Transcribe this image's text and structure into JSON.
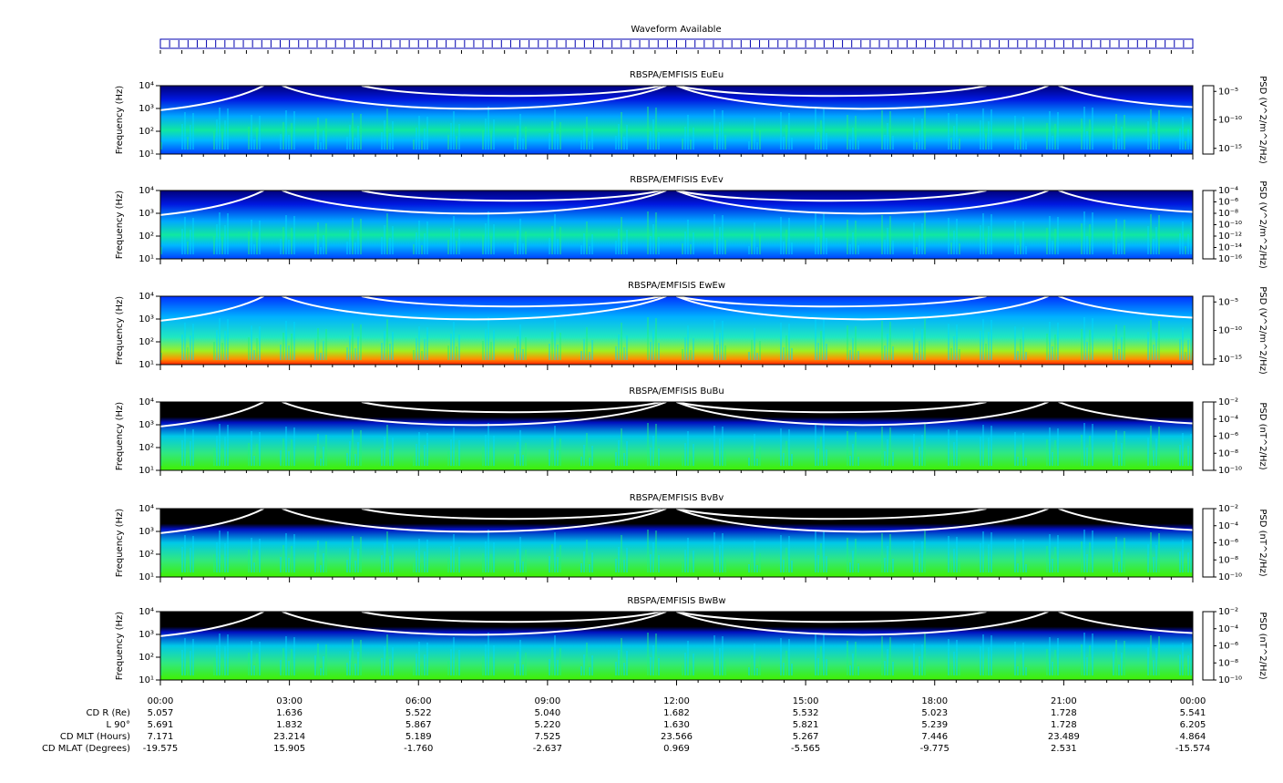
{
  "header": {
    "title": "Waveform Available"
  },
  "chart_data": [
    {
      "type": "spectrogram",
      "title": "RBSPA/EMFISIS  EuEu",
      "ylabel": "Frequency (Hz)",
      "ylim": [
        10,
        10000
      ],
      "log_y": true,
      "yticks": [
        {
          "value": 10,
          "label": "10¹"
        },
        {
          "value": 100,
          "label": "10²"
        },
        {
          "value": 1000,
          "label": "10³"
        },
        {
          "value": 10000,
          "label": "10⁴"
        }
      ],
      "zlabel": "PSD (V^2/m^2/Hz)",
      "zlim": [
        1e-16,
        0.0001
      ],
      "zticks": [
        {
          "value": 1e-05,
          "label": "10⁻⁵"
        },
        {
          "value": 1e-10,
          "label": "10⁻¹⁰"
        },
        {
          "value": 1e-15,
          "label": "10⁻¹⁵"
        }
      ]
    },
    {
      "type": "spectrogram",
      "title": "RBSPA/EMFISIS  EvEv",
      "ylabel": "Frequency (Hz)",
      "ylim": [
        10,
        10000
      ],
      "log_y": true,
      "yticks": [
        {
          "value": 10,
          "label": "10¹"
        },
        {
          "value": 100,
          "label": "10²"
        },
        {
          "value": 1000,
          "label": "10³"
        },
        {
          "value": 10000,
          "label": "10⁴"
        }
      ],
      "zlabel": "PSD (V^2/m^2/Hz)",
      "zlim": [
        1e-16,
        0.0001
      ],
      "zticks": [
        {
          "value": 0.0001,
          "label": "10⁻⁴"
        },
        {
          "value": 1e-06,
          "label": "10⁻⁶"
        },
        {
          "value": 1e-08,
          "label": "10⁻⁸"
        },
        {
          "value": 1e-10,
          "label": "10⁻¹⁰"
        },
        {
          "value": 1e-12,
          "label": "10⁻¹²"
        },
        {
          "value": 1e-14,
          "label": "10⁻¹⁴"
        },
        {
          "value": 1e-16,
          "label": "10⁻¹⁶"
        }
      ]
    },
    {
      "type": "spectrogram",
      "title": "RBSPA/EMFISIS  EwEw",
      "ylabel": "Frequency (Hz)",
      "ylim": [
        10,
        10000
      ],
      "log_y": true,
      "yticks": [
        {
          "value": 10,
          "label": "10¹"
        },
        {
          "value": 100,
          "label": "10²"
        },
        {
          "value": 1000,
          "label": "10³"
        },
        {
          "value": 10000,
          "label": "10⁴"
        }
      ],
      "zlabel": "PSD (V^2/m^2/Hz)",
      "zlim": [
        1e-16,
        0.0001
      ],
      "zticks": [
        {
          "value": 1e-05,
          "label": "10⁻⁵"
        },
        {
          "value": 1e-10,
          "label": "10⁻¹⁰"
        },
        {
          "value": 1e-15,
          "label": "10⁻¹⁵"
        }
      ]
    },
    {
      "type": "spectrogram",
      "title": "RBSPA/EMFISIS  BuBu",
      "ylabel": "Frequency (Hz)",
      "ylim": [
        10,
        10000
      ],
      "log_y": true,
      "yticks": [
        {
          "value": 10,
          "label": "10¹"
        },
        {
          "value": 100,
          "label": "10²"
        },
        {
          "value": 1000,
          "label": "10³"
        },
        {
          "value": 10000,
          "label": "10⁴"
        }
      ],
      "zlabel": "PSD (nT^2/Hz)",
      "zlim": [
        1e-10,
        0.01
      ],
      "zticks": [
        {
          "value": 0.01,
          "label": "10⁻²"
        },
        {
          "value": 0.0001,
          "label": "10⁻⁴"
        },
        {
          "value": 1e-06,
          "label": "10⁻⁶"
        },
        {
          "value": 1e-08,
          "label": "10⁻⁸"
        },
        {
          "value": 1e-10,
          "label": "10⁻¹⁰"
        }
      ]
    },
    {
      "type": "spectrogram",
      "title": "RBSPA/EMFISIS  BvBv",
      "ylabel": "Frequency (Hz)",
      "ylim": [
        10,
        10000
      ],
      "log_y": true,
      "yticks": [
        {
          "value": 10,
          "label": "10¹"
        },
        {
          "value": 100,
          "label": "10²"
        },
        {
          "value": 1000,
          "label": "10³"
        },
        {
          "value": 10000,
          "label": "10⁴"
        }
      ],
      "zlabel": "PSD (nT^2/Hz)",
      "zlim": [
        1e-10,
        0.01
      ],
      "zticks": [
        {
          "value": 0.01,
          "label": "10⁻²"
        },
        {
          "value": 0.0001,
          "label": "10⁻⁴"
        },
        {
          "value": 1e-06,
          "label": "10⁻⁶"
        },
        {
          "value": 1e-08,
          "label": "10⁻⁸"
        },
        {
          "value": 1e-10,
          "label": "10⁻¹⁰"
        }
      ]
    },
    {
      "type": "spectrogram",
      "title": "RBSPA/EMFISIS  BwBw",
      "ylabel": "Frequency (Hz)",
      "ylim": [
        10,
        10000
      ],
      "log_y": true,
      "yticks": [
        {
          "value": 10,
          "label": "10¹"
        },
        {
          "value": 100,
          "label": "10²"
        },
        {
          "value": 1000,
          "label": "10³"
        },
        {
          "value": 10000,
          "label": "10⁴"
        }
      ],
      "zlabel": "PSD (nT^2/Hz)",
      "zlim": [
        1e-10,
        0.01
      ],
      "zticks": [
        {
          "value": 0.01,
          "label": "10⁻²"
        },
        {
          "value": 0.0001,
          "label": "10⁻⁴"
        },
        {
          "value": 1e-06,
          "label": "10⁻⁶"
        },
        {
          "value": 1e-08,
          "label": "10⁻⁸"
        },
        {
          "value": 1e-10,
          "label": "10⁻¹⁰"
        }
      ]
    }
  ],
  "time_axis": {
    "labels": [
      "00:00",
      "03:00",
      "06:00",
      "09:00",
      "12:00",
      "15:00",
      "18:00",
      "21:00",
      "00:00"
    ]
  },
  "ephemeris": [
    {
      "label": "CD R (Re)",
      "values": [
        "5.057",
        "1.636",
        "5.522",
        "5.040",
        "1.682",
        "5.532",
        "5.023",
        "1.728",
        "5.541"
      ]
    },
    {
      "label": "L 90°",
      "values": [
        "5.691",
        "1.832",
        "5.867",
        "5.220",
        "1.630",
        "5.821",
        "5.239",
        "1.728",
        "6.205"
      ]
    },
    {
      "label": "CD MLT (Hours)",
      "values": [
        "7.171",
        "23.214",
        "5.189",
        "7.525",
        "23.566",
        "5.267",
        "7.446",
        "23.489",
        "4.864"
      ]
    },
    {
      "label": "CD MLAT (Degrees)",
      "values": [
        "-19.575",
        "15.905",
        "-1.760",
        "-2.637",
        "0.969",
        "-5.565",
        "-9.775",
        "2.531",
        "-15.574"
      ]
    }
  ]
}
